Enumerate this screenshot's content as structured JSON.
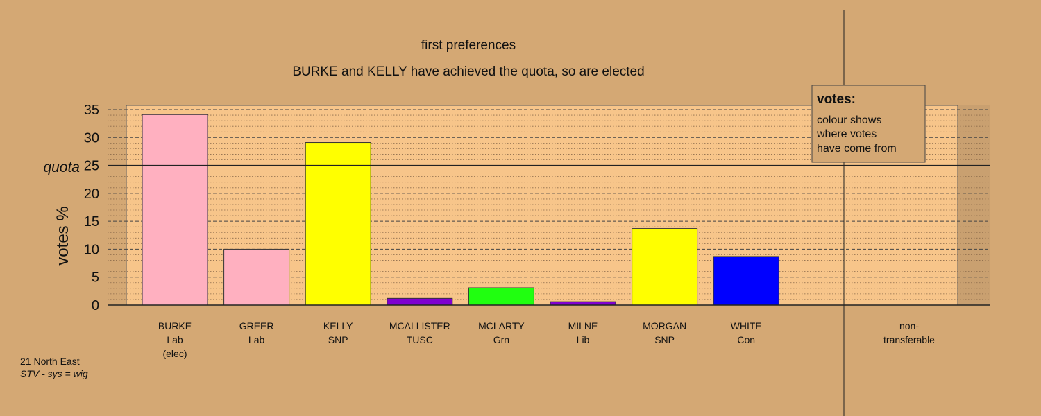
{
  "chart_data": {
    "type": "bar",
    "title": "first preferences",
    "subtitle": "BURKE and KELLY have achieved the quota, so are elected",
    "ylabel": "votes %",
    "ylim": [
      0,
      35
    ],
    "yticks": [
      0,
      5,
      10,
      15,
      20,
      25,
      30,
      35
    ],
    "quota": 25,
    "quota_label": "quota",
    "categories": [
      {
        "name": "BURKE",
        "party": "Lab",
        "note": "(elec)"
      },
      {
        "name": "GREER",
        "party": "Lab",
        "note": ""
      },
      {
        "name": "KELLY",
        "party": "SNP",
        "note": ""
      },
      {
        "name": "MCALLISTER",
        "party": "TUSC",
        "note": ""
      },
      {
        "name": "MCLARTY",
        "party": "Grn",
        "note": ""
      },
      {
        "name": "MILNE",
        "party": "Lib",
        "note": ""
      },
      {
        "name": "MORGAN",
        "party": "SNP",
        "note": ""
      },
      {
        "name": "WHITE",
        "party": "Con",
        "note": ""
      }
    ],
    "values": [
      34.1,
      10.0,
      29.1,
      1.2,
      3.1,
      0.6,
      13.7,
      8.7
    ],
    "colors": [
      "#ffb0c0",
      "#ffb0c0",
      "#ffff00",
      "#8000d0",
      "#20ff10",
      "#8000d0",
      "#ffff00",
      "#0000ff"
    ],
    "nontransferable": {
      "label_line1": "non-",
      "label_line2": "transferable",
      "value": 0
    },
    "legend": {
      "title": "votes:",
      "lines": [
        "colour shows",
        "where votes",
        "have come from"
      ]
    },
    "grid": true
  },
  "footer": {
    "line1": "21 North East",
    "line2": "STV - sys = wig"
  },
  "colors": {
    "background": "#d4a874",
    "plot_area": "#f7c58a",
    "legend_bg": "#d4a874"
  }
}
